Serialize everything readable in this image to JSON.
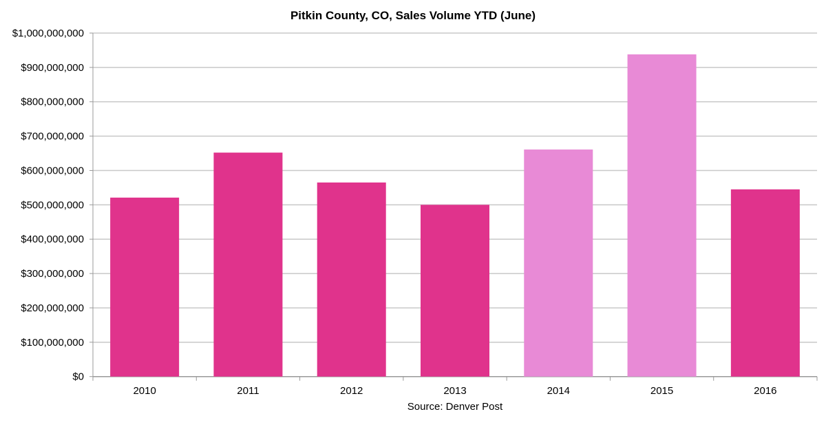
{
  "chart_data": {
    "type": "bar",
    "title": "Pitkin County, CO, Sales Volume YTD (June)",
    "xlabel": "Source: Denver Post",
    "ylabel": "",
    "categories": [
      "2010",
      "2011",
      "2012",
      "2013",
      "2014",
      "2015",
      "2016"
    ],
    "values": [
      521000000,
      652000000,
      565000000,
      500000000,
      661000000,
      938000000,
      545000000
    ],
    "highlighted": [
      false,
      false,
      false,
      false,
      true,
      true,
      false
    ],
    "ylim": [
      0,
      1000000000
    ],
    "yticks": [
      0,
      100000000,
      200000000,
      300000000,
      400000000,
      500000000,
      600000000,
      700000000,
      800000000,
      900000000,
      1000000000
    ],
    "ytick_labels": [
      "$0",
      "$100,000,000",
      "$200,000,000",
      "$300,000,000",
      "$400,000,000",
      "$500,000,000",
      "$600,000,000",
      "$700,000,000",
      "$800,000,000",
      "$900,000,000",
      "$1,000,000,000"
    ],
    "grid": true,
    "colors": {
      "bar": "#E0338C",
      "bar_highlight": "#E88AD6",
      "grid": "#C8C8C8"
    }
  }
}
